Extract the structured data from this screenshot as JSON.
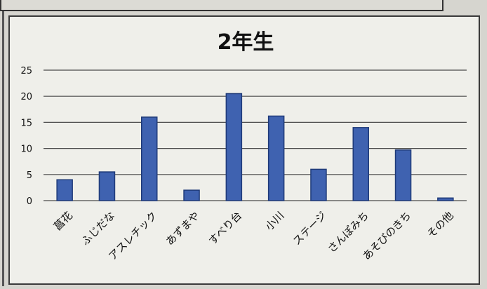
{
  "chart_data": {
    "type": "bar",
    "title": "2年生",
    "xlabel": "",
    "ylabel": "",
    "categories": [
      "菖花",
      "ふじだな",
      "アスレチック",
      "あずまや",
      "すべり台",
      "小川",
      "ステージ",
      "さんぽみち",
      "あそびのきち",
      "その他"
    ],
    "values": [
      4,
      5.5,
      16,
      2,
      20.5,
      16.2,
      6,
      14,
      9.7,
      0.5
    ],
    "ylim": [
      0,
      25
    ],
    "yticks": [
      "0",
      "5",
      "10",
      "15",
      "20",
      "25"
    ],
    "grid": true,
    "legend": "none",
    "bar_color": "#3f62b0",
    "bar_edge": "#1f3a78"
  }
}
